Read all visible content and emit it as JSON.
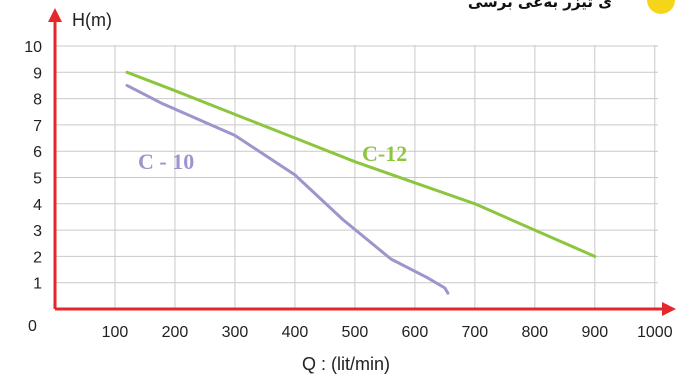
{
  "header": {
    "partial_text": "ی تیزر به‌عی برسی"
  },
  "chart_data": {
    "type": "line",
    "title": "",
    "xlabel": "Q : (lit/min)",
    "ylabel": "H(m)",
    "xlim": [
      0,
      1000
    ],
    "ylim": [
      0,
      10
    ],
    "x_ticks": [
      "100",
      "200",
      "300",
      "400",
      "500",
      "600",
      "700",
      "800",
      "900",
      "1000"
    ],
    "y_ticks": [
      "1",
      "2",
      "3",
      "4",
      "5",
      "6",
      "7",
      "8",
      "9",
      "10"
    ],
    "origin_label": "0",
    "grid": true,
    "series": [
      {
        "name": "C-12",
        "color": "#8cc63f",
        "x": [
          120,
          200,
          300,
          400,
          500,
          600,
          700,
          800,
          900
        ],
        "y": [
          9.0,
          8.3,
          7.4,
          6.5,
          5.6,
          4.8,
          4.0,
          3.0,
          2.0
        ]
      },
      {
        "name": "C - 10",
        "color": "#9d96cc",
        "x": [
          120,
          180,
          300,
          400,
          480,
          560,
          620,
          650,
          655
        ],
        "y": [
          8.5,
          7.8,
          6.6,
          5.1,
          3.4,
          1.9,
          1.2,
          0.8,
          0.6
        ]
      }
    ]
  }
}
